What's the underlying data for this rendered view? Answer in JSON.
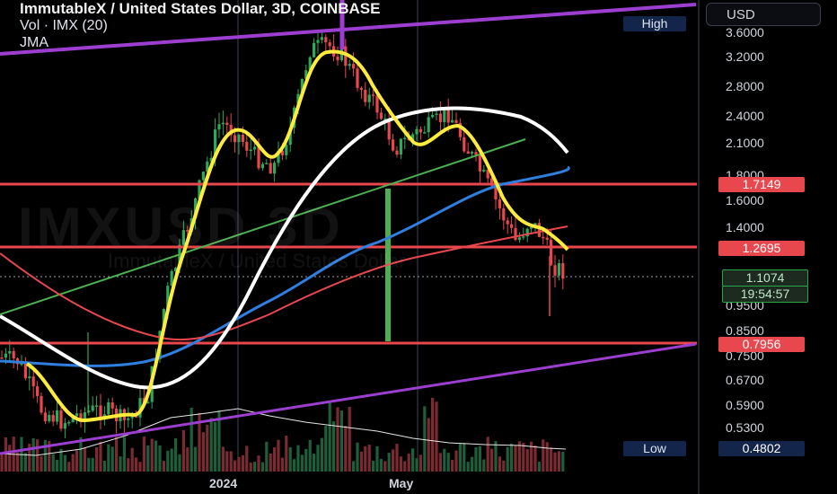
{
  "header": {
    "title": "ImmutableX / United States Dollar, 3D, COINBASE",
    "volume_label": "Vol · IMX (20)",
    "indicator_label": "JMA"
  },
  "currency_button": "USD",
  "watermark": {
    "main": "IMXUSD 3D",
    "sub": "ImmutableX / United States Dollar"
  },
  "price_axis": [
    "3.6000",
    "3.2000",
    "2.8000",
    "2.4000",
    "2.1000",
    "1.8000",
    "1.6000",
    "1.4000",
    "0.9500",
    "0.8500",
    "0.7500",
    "0.6700",
    "0.5900",
    "0.5300"
  ],
  "time_axis": [
    "2024",
    "May"
  ],
  "tags": {
    "high_label": "High",
    "low_label": "Low",
    "low_value": "0.4802",
    "levels": [
      "1.7149",
      "1.2695",
      "0.7956"
    ],
    "last_price": "1.1074",
    "countdown": "19:54:57"
  },
  "colors": {
    "background": "#000000",
    "up": "#2ea85a",
    "down": "#e8474e",
    "jma": "#ffeb3b",
    "ma_white": "#ffffff",
    "ma_blue": "#2f7fe0",
    "ma_red": "#e8474e",
    "trend_green": "#4caf50",
    "trend_purple": "#9c3fd0",
    "level_red": "#e8474e"
  }
}
